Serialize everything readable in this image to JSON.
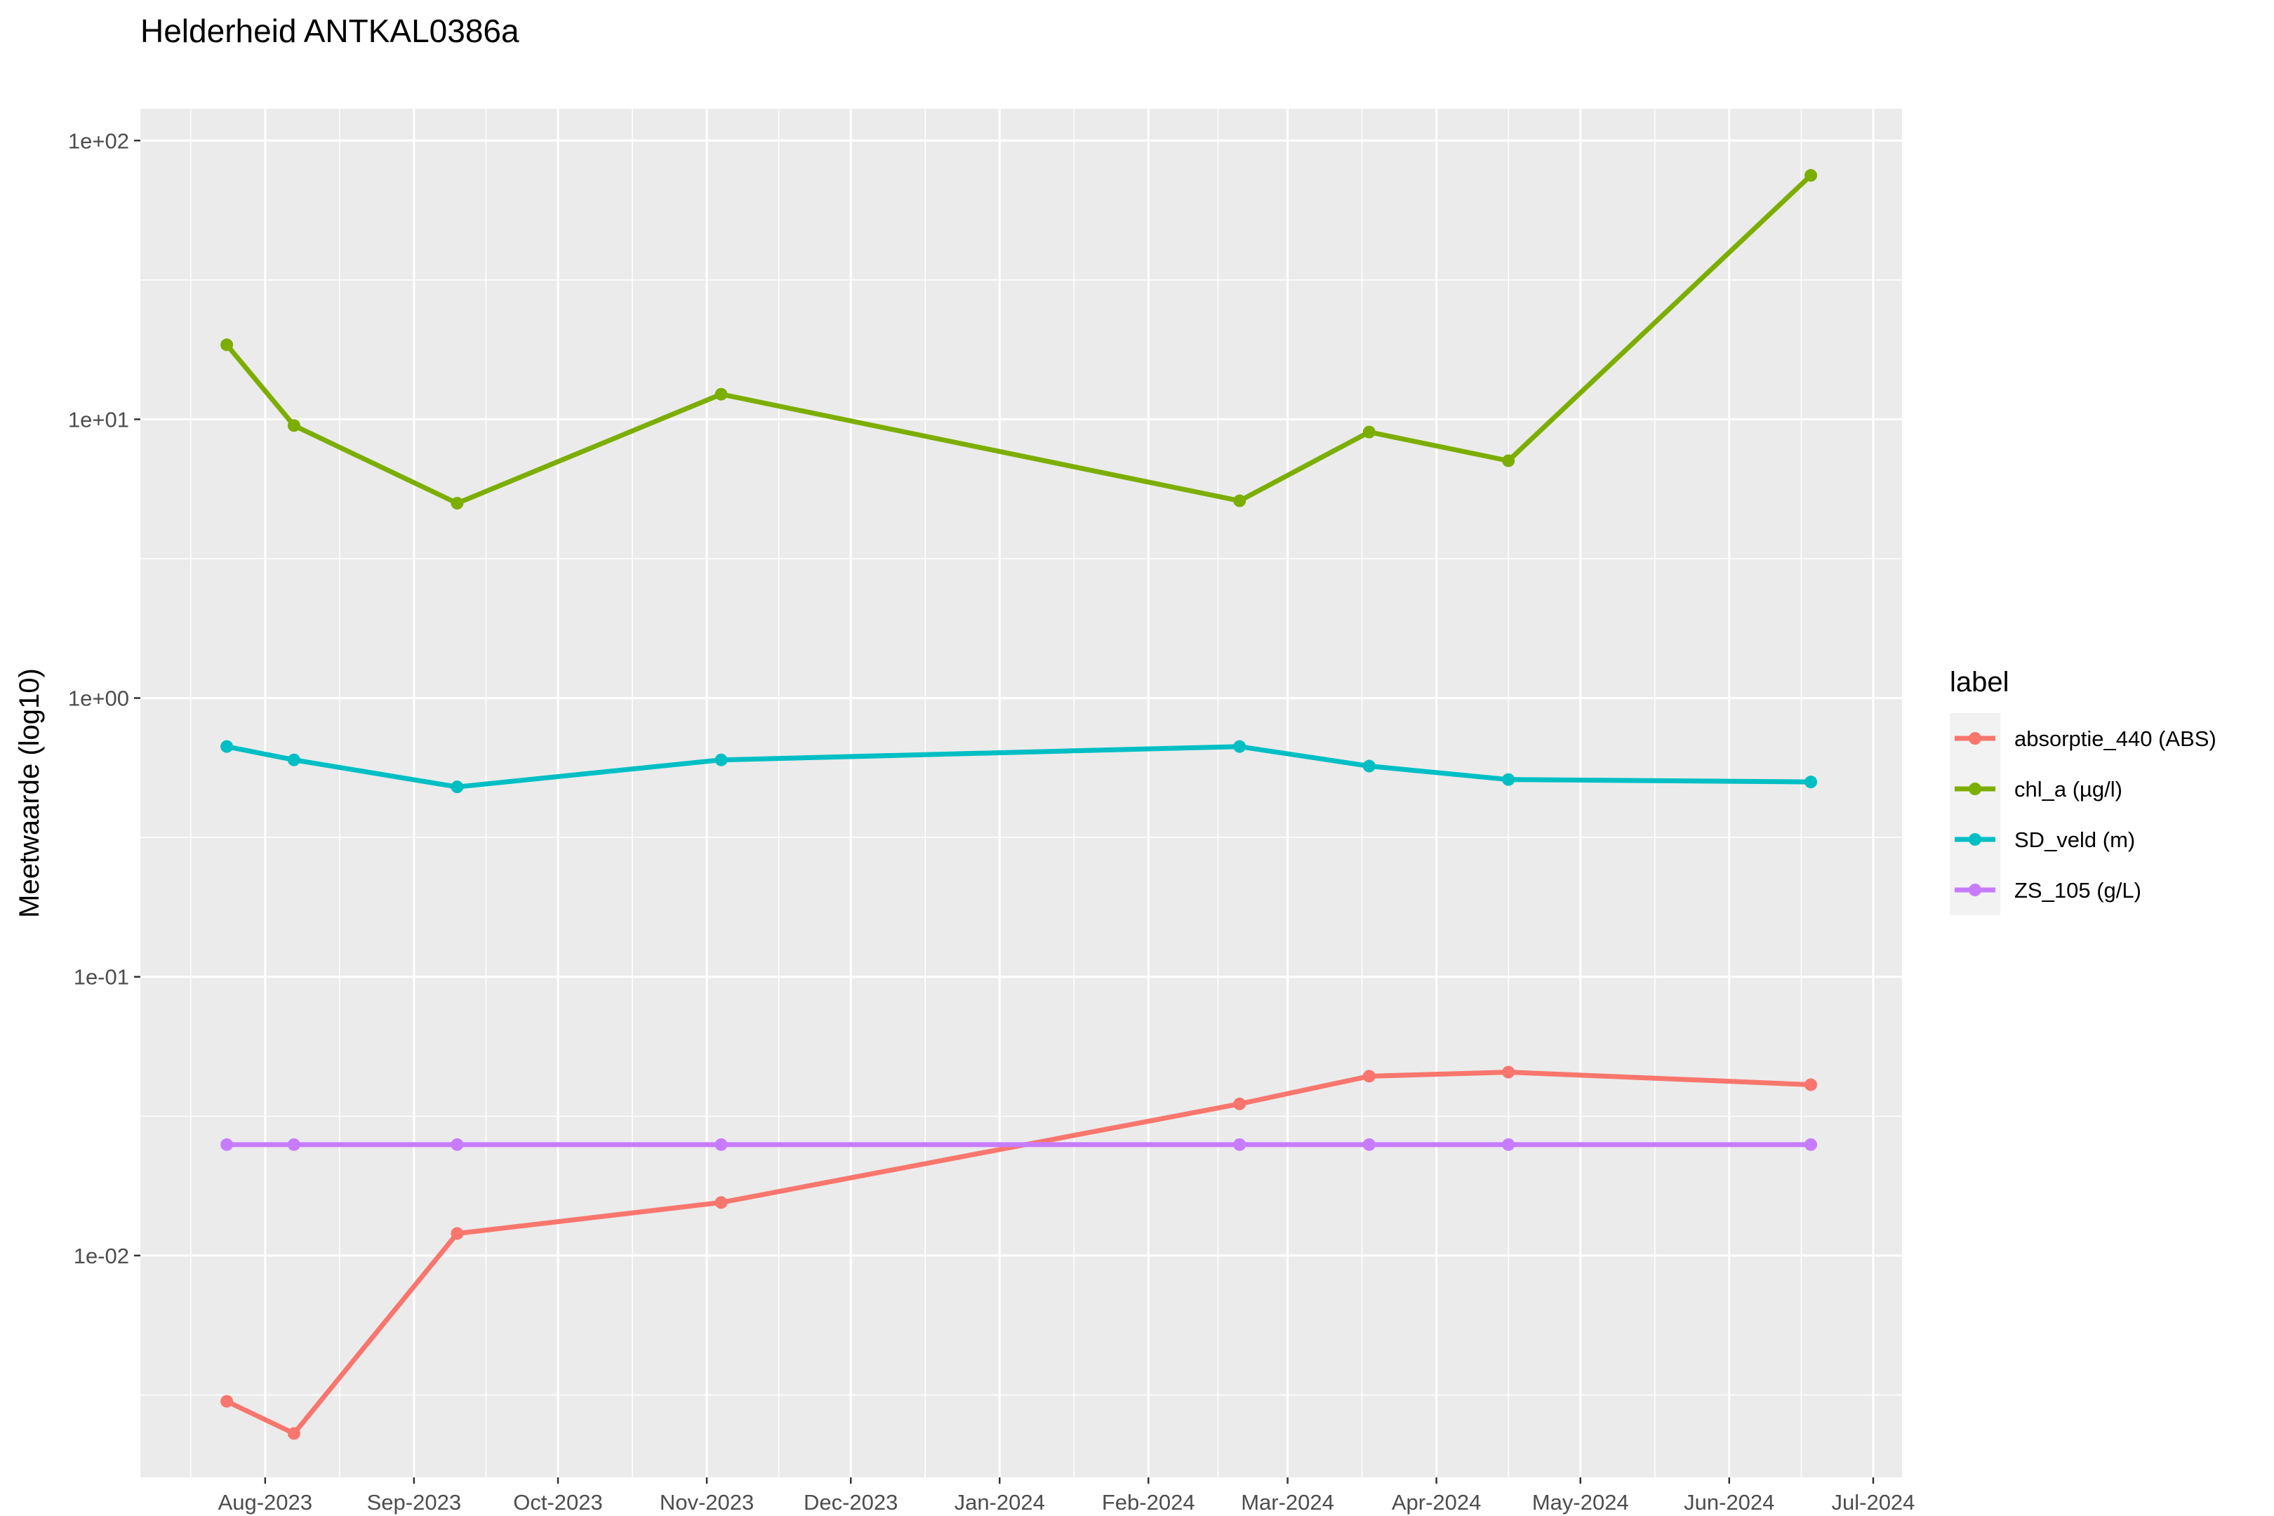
{
  "chart_data": {
    "type": "line",
    "title": "Helderheid ANTKAL0386a",
    "xlabel": "",
    "ylabel": "Meetwaarde (log10)",
    "y_scale": "log10",
    "ylim": [
      0.0016,
      130
    ],
    "xlim": [
      "2023-07-06",
      "2024-07-07"
    ],
    "y_ticks": [
      {
        "value": 100,
        "label": "1e+02"
      },
      {
        "value": 10,
        "label": "1e+01"
      },
      {
        "value": 1,
        "label": "1e+00"
      },
      {
        "value": 0.1,
        "label": "1e-01"
      },
      {
        "value": 0.01,
        "label": "1e-02"
      }
    ],
    "x_ticks": [
      {
        "date": "2023-08-01",
        "label": "Aug-2023"
      },
      {
        "date": "2023-09-01",
        "label": "Sep-2023"
      },
      {
        "date": "2023-10-01",
        "label": "Oct-2023"
      },
      {
        "date": "2023-11-01",
        "label": "Nov-2023"
      },
      {
        "date": "2023-12-01",
        "label": "Dec-2023"
      },
      {
        "date": "2024-01-01",
        "label": "Jan-2024"
      },
      {
        "date": "2024-02-01",
        "label": "Feb-2024"
      },
      {
        "date": "2024-03-01",
        "label": "Mar-2024"
      },
      {
        "date": "2024-04-01",
        "label": "Apr-2024"
      },
      {
        "date": "2024-05-01",
        "label": "May-2024"
      },
      {
        "date": "2024-06-01",
        "label": "Jun-2024"
      },
      {
        "date": "2024-07-01",
        "label": "Jul-2024"
      }
    ],
    "grid": true,
    "legend": {
      "title": "label",
      "position": "right"
    },
    "series": [
      {
        "name": "absorptie_440 (ABS)",
        "color": "#F8766D",
        "x": [
          "2023-07-24",
          "2023-08-07",
          "2023-09-10",
          "2023-11-04",
          "2024-02-20",
          "2024-03-18",
          "2024-04-16",
          "2024-06-18"
        ],
        "values": [
          0.003,
          0.0023,
          0.012,
          0.0155,
          0.035,
          0.044,
          0.0455,
          0.041
        ]
      },
      {
        "name": "chl_a (µg/l)",
        "color": "#7CAE00",
        "x": [
          "2023-07-24",
          "2023-08-07",
          "2023-09-10",
          "2023-11-04",
          "2024-02-20",
          "2024-03-18",
          "2024-04-16",
          "2024-06-18"
        ],
        "values": [
          18.5,
          9.5,
          5.0,
          12.3,
          5.1,
          9.0,
          7.1,
          75
        ]
      },
      {
        "name": "SD_veld (m)",
        "color": "#00BFC4",
        "x": [
          "2023-07-24",
          "2023-08-07",
          "2023-09-10",
          "2023-11-04",
          "2024-02-20",
          "2024-03-18",
          "2024-04-16",
          "2024-06-18"
        ],
        "values": [
          0.67,
          0.6,
          0.48,
          0.6,
          0.67,
          0.57,
          0.51,
          0.5
        ]
      },
      {
        "name": "ZS_105 (g/L)",
        "color": "#C77CFF",
        "x": [
          "2023-07-24",
          "2023-08-07",
          "2023-09-10",
          "2023-11-04",
          "2024-02-20",
          "2024-03-18",
          "2024-04-16",
          "2024-06-18"
        ],
        "values": [
          0.025,
          0.025,
          0.025,
          0.025,
          0.025,
          0.025,
          0.025,
          0.025
        ]
      }
    ]
  }
}
